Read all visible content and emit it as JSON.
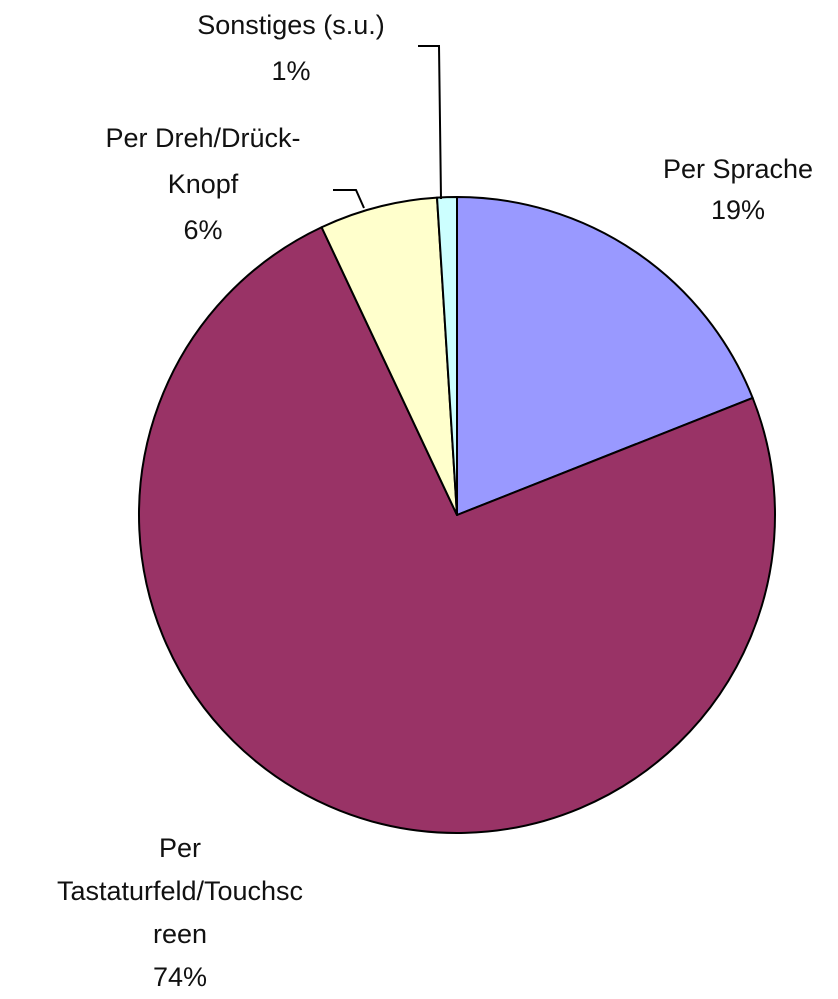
{
  "chart_data": {
    "type": "pie",
    "title": "",
    "slices": [
      {
        "label": "Per Sprache",
        "value": 19,
        "value_label": "19%",
        "color": "#9999ff"
      },
      {
        "label": "Per Tastaturfeld/Touchscreen",
        "value": 74,
        "value_label": "74%",
        "color": "#993366"
      },
      {
        "label": "Per Dreh/Drück-Knopf",
        "value": 6,
        "value_label": "6%",
        "color": "#ffffcc"
      },
      {
        "label": "Sonstiges (s.u.)",
        "value": 1,
        "value_label": "1%",
        "color": "#ccffff"
      }
    ],
    "label_lines": [
      [
        "Per Sprache",
        "19%"
      ],
      [
        "Per",
        "Tastaturfeld/Touchsc",
        "reen",
        "74%"
      ],
      [
        "Per Dreh/Drück-",
        "Knopf",
        "6%"
      ],
      [
        "Sonstiges (s.u.)",
        "1%"
      ]
    ],
    "start": "12 o'clock",
    "direction": "clockwise",
    "legend": "none",
    "labels": "outside",
    "border_color": "#000000"
  }
}
